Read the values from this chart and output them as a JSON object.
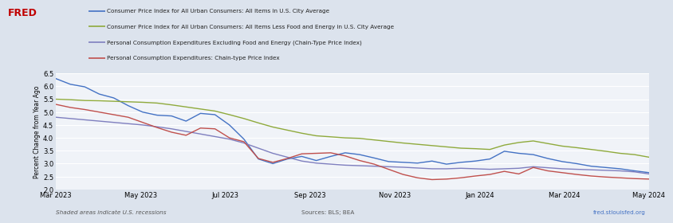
{
  "ylabel": "Percent Change from Year Ago",
  "ylim": [
    2.0,
    6.5
  ],
  "yticks": [
    2.0,
    2.5,
    3.0,
    3.5,
    4.0,
    4.5,
    5.0,
    5.5,
    6.0,
    6.5
  ],
  "bg_color": "#dce3ed",
  "plot_bg_color": "#f0f3f8",
  "grid_color": "#ffffff",
  "legend_labels": [
    "Consumer Price Index for All Urban Consumers: All Items in U.S. City Average",
    "Consumer Price Index for All Urban Consumers: All Items Less Food and Energy in U.S. City Average",
    "Personal Consumption Expenditures Excluding Food and Energy (Chain-Type Price Index)",
    "Personal Consumption Expenditures: Chain-type Price Index"
  ],
  "line_colors": [
    "#4472c4",
    "#8faa3c",
    "#7f7fbf",
    "#c0504d"
  ],
  "xtick_labels": [
    "Mar 2023",
    "May 2023",
    "Jul 2023",
    "Sep 2023",
    "Nov 2023",
    "Jan 2024",
    "Mar 2024",
    "May 2024"
  ],
  "footer_left": "Shaded areas indicate U.S. recessions",
  "footer_center": "Sources: BLS; BEA",
  "footer_right": "fred.stlouisfed.org",
  "cpi_all": [
    6.3,
    6.08,
    5.98,
    5.7,
    5.55,
    5.25,
    5.0,
    4.88,
    4.85,
    4.65,
    4.95,
    4.9,
    4.5,
    3.95,
    3.18,
    3.0,
    3.18,
    3.28,
    3.12,
    3.28,
    3.42,
    3.35,
    3.22,
    3.08,
    3.05,
    3.02,
    3.1,
    2.98,
    3.05,
    3.1,
    3.18,
    3.48,
    3.4,
    3.35,
    3.2,
    3.08,
    3.0,
    2.9,
    2.85,
    2.8,
    2.72,
    2.65
  ],
  "cpi_core": [
    5.5,
    5.48,
    5.45,
    5.44,
    5.42,
    5.4,
    5.38,
    5.35,
    5.28,
    5.2,
    5.12,
    5.04,
    4.9,
    4.75,
    4.58,
    4.42,
    4.3,
    4.18,
    4.08,
    4.04,
    4.0,
    3.98,
    3.92,
    3.86,
    3.8,
    3.75,
    3.7,
    3.65,
    3.6,
    3.58,
    3.55,
    3.72,
    3.82,
    3.88,
    3.78,
    3.68,
    3.62,
    3.55,
    3.48,
    3.4,
    3.35,
    3.25
  ],
  "pce_core": [
    4.8,
    4.75,
    4.7,
    4.65,
    4.6,
    4.55,
    4.5,
    4.43,
    4.35,
    4.25,
    4.15,
    4.05,
    3.95,
    3.8,
    3.6,
    3.4,
    3.25,
    3.1,
    3.02,
    2.98,
    2.94,
    2.92,
    2.9,
    2.88,
    2.86,
    2.83,
    2.8,
    2.8,
    2.82,
    2.8,
    2.78,
    2.8,
    2.82,
    2.88,
    2.84,
    2.8,
    2.78,
    2.76,
    2.74,
    2.72,
    2.68,
    2.6
  ],
  "pce_all": [
    5.3,
    5.18,
    5.1,
    5.0,
    4.9,
    4.8,
    4.6,
    4.4,
    4.22,
    4.1,
    4.38,
    4.35,
    4.0,
    3.85,
    3.2,
    3.05,
    3.2,
    3.38,
    3.4,
    3.42,
    3.3,
    3.12,
    2.98,
    2.78,
    2.58,
    2.45,
    2.38,
    2.4,
    2.45,
    2.52,
    2.58,
    2.7,
    2.6,
    2.85,
    2.72,
    2.65,
    2.58,
    2.52,
    2.48,
    2.45,
    2.42,
    2.4
  ],
  "n_points": 42
}
